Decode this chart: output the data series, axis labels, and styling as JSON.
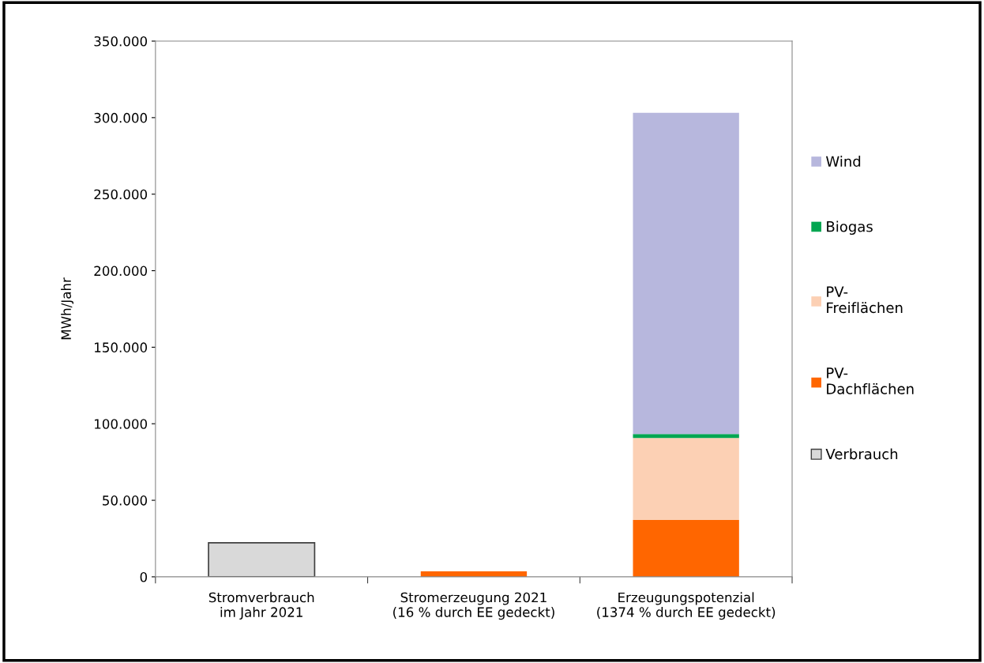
{
  "chart_data": {
    "type": "bar",
    "stacked": true,
    "ylabel": "MWh/Jahr",
    "categories": [
      "Stromverbrauch\nim Jahr 2021",
      "Stromerzeugung 2021\n(16 % durch EE gedeckt)",
      "Erzeugungspotenzial\n(1374 % durch EE gedeckt)"
    ],
    "series": [
      {
        "name": "Verbrauch",
        "color": "#d9d9d9",
        "values": [
          22200,
          null,
          null
        ]
      },
      {
        "name": "PV-\nDachflächen",
        "color": "#ff6600",
        "values": [
          null,
          3600,
          37100
        ]
      },
      {
        "name": "PV-\nFreiflächen",
        "color": "#fcd0b4",
        "values": [
          null,
          null,
          53600
        ]
      },
      {
        "name": "Biogas",
        "color": "#00a651",
        "values": [
          null,
          null,
          2600
        ]
      },
      {
        "name": "Wind",
        "color": "#b7b7dd",
        "values": [
          null,
          null,
          209800
        ]
      }
    ],
    "ylim": [
      0,
      350000
    ],
    "yticks": [
      0,
      {
        "value": 50000,
        "label": "50.000"
      },
      {
        "value": 100000,
        "label": "100.000"
      },
      {
        "value": 150000,
        "label": "150.000"
      },
      {
        "value": 200000,
        "label": "200.000"
      },
      {
        "value": 250000,
        "label": "250.000"
      },
      {
        "value": 300000,
        "label": "300.000"
      },
      {
        "value": 350000,
        "label": "350.000"
      }
    ],
    "grid": false,
    "legend": "right"
  }
}
